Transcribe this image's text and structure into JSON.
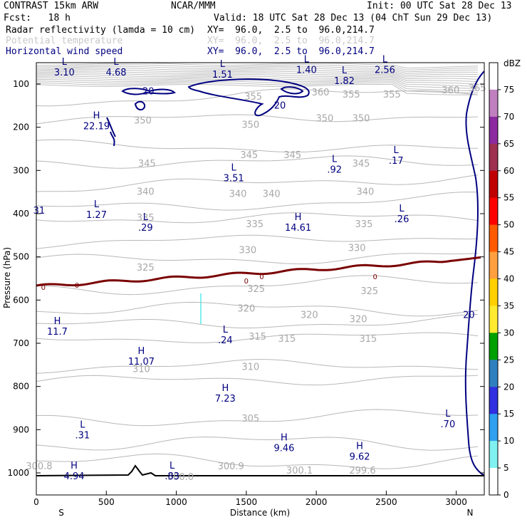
{
  "header": {
    "model": "CONTRAST 15km ARW",
    "center": "NCAR/MMM",
    "init": "Init: 00 UTC Sat 28 Dec 13",
    "fcst": "Fcst:   18 h",
    "valid": "Valid: 18 UTC Sat 28 Dec 13 (04 ChT Sun 29 Dec 13)",
    "fields": [
      {
        "name": "Radar reflectivity (lamda = 10 cm)",
        "xy": "XY=  96.0,  2.5 to  96.0,214.7",
        "color": "#000000"
      },
      {
        "name": "Potential temperature",
        "xy": "XY=  96.0,  2.5 to  96.0,214.7",
        "color": "#c8c8c8"
      },
      {
        "name": "Horizontal wind speed",
        "xy": "XY=  96.0,  2.5 to  96.0,214.7",
        "color": "#000080"
      }
    ]
  },
  "chart_data": {
    "type": "cross-section",
    "xlabel": "Distance (km)",
    "ylabel": "Pressure (hPa)",
    "xlim": [
      0,
      3200
    ],
    "ylim": [
      1030,
      50
    ],
    "x_ticks": [
      0,
      500,
      1000,
      1500,
      2000,
      2500,
      3000
    ],
    "y_ticks": [
      100,
      200,
      300,
      400,
      500,
      600,
      700,
      800,
      900,
      1000
    ],
    "left_end_label": "S",
    "right_end_label": "N",
    "colorbar": {
      "unit": "dBZ",
      "levels": [
        75,
        70,
        65,
        60,
        55,
        50,
        45,
        40,
        35,
        30,
        25,
        20,
        15,
        10,
        5,
        0
      ],
      "colors": [
        "#ffffff",
        "#c080c0",
        "#8c2aa0",
        "#9e3050",
        "#c00000",
        "#ff0000",
        "#ff5a00",
        "#ffa040",
        "#ffd000",
        "#ffeb30",
        "#00a000",
        "#3080c0",
        "#3030e0",
        "#30a0f0",
        "#80f0f0",
        "#ffffff"
      ]
    },
    "theta_labels": [
      {
        "x": 1550,
        "p": 130,
        "text": "355"
      },
      {
        "x": 2030,
        "p": 120,
        "text": "360"
      },
      {
        "x": 2250,
        "p": 125,
        "text": "355"
      },
      {
        "x": 2540,
        "p": 125,
        "text": "355"
      },
      {
        "x": 2960,
        "p": 115,
        "text": "360"
      },
      {
        "x": 3150,
        "p": 110,
        "text": "365"
      },
      {
        "x": 760,
        "p": 185,
        "text": "350"
      },
      {
        "x": 1530,
        "p": 195,
        "text": "350"
      },
      {
        "x": 2060,
        "p": 180,
        "text": "350"
      },
      {
        "x": 2320,
        "p": 180,
        "text": "350"
      },
      {
        "x": 790,
        "p": 285,
        "text": "345"
      },
      {
        "x": 1520,
        "p": 265,
        "text": "345"
      },
      {
        "x": 1830,
        "p": 265,
        "text": "345"
      },
      {
        "x": 2320,
        "p": 285,
        "text": "345"
      },
      {
        "x": 780,
        "p": 350,
        "text": "340"
      },
      {
        "x": 1440,
        "p": 355,
        "text": "340"
      },
      {
        "x": 1680,
        "p": 355,
        "text": "340"
      },
      {
        "x": 2350,
        "p": 350,
        "text": "340"
      },
      {
        "x": 780,
        "p": 410,
        "text": "335"
      },
      {
        "x": 1560,
        "p": 425,
        "text": "335"
      },
      {
        "x": 2340,
        "p": 425,
        "text": "335"
      },
      {
        "x": 1510,
        "p": 485,
        "text": "330"
      },
      {
        "x": 2290,
        "p": 480,
        "text": "330"
      },
      {
        "x": 780,
        "p": 525,
        "text": "325"
      },
      {
        "x": 1570,
        "p": 575,
        "text": "325"
      },
      {
        "x": 2380,
        "p": 580,
        "text": "325"
      },
      {
        "x": 1500,
        "p": 620,
        "text": "320"
      },
      {
        "x": 1950,
        "p": 635,
        "text": "320"
      },
      {
        "x": 2300,
        "p": 645,
        "text": "320"
      },
      {
        "x": 1580,
        "p": 685,
        "text": "315"
      },
      {
        "x": 1790,
        "p": 690,
        "text": "315"
      },
      {
        "x": 2370,
        "p": 690,
        "text": "315"
      },
      {
        "x": 750,
        "p": 760,
        "text": "310"
      },
      {
        "x": 1530,
        "p": 755,
        "text": "310"
      },
      {
        "x": 1530,
        "p": 875,
        "text": "305"
      },
      {
        "x": 1390,
        "p": 985,
        "text": "300.9"
      },
      {
        "x": 1880,
        "p": 995,
        "text": "300.1"
      },
      {
        "x": 2330,
        "p": 995,
        "text": "299.6"
      },
      {
        "x": 20,
        "p": 985,
        "text": "300.8"
      },
      {
        "x": 1030,
        "p": 1010,
        "text": "300.0"
      }
    ],
    "wind_labels": [
      {
        "x": 200,
        "p": 65,
        "kind": "L",
        "value": "3.10"
      },
      {
        "x": 570,
        "p": 65,
        "kind": "L",
        "value": "4.68"
      },
      {
        "x": 1330,
        "p": 70,
        "kind": "L",
        "value": "1.51"
      },
      {
        "x": 1930,
        "p": 60,
        "kind": "L",
        "value": "1.40"
      },
      {
        "x": 2200,
        "p": 85,
        "kind": "L",
        "value": "1.82"
      },
      {
        "x": 2490,
        "p": 60,
        "kind": "L",
        "value": "2.56"
      },
      {
        "x": 430,
        "p": 190,
        "kind": "H",
        "value": "22.19"
      },
      {
        "x": 2130,
        "p": 290,
        "kind": "L",
        "value": ".92"
      },
      {
        "x": 2570,
        "p": 270,
        "kind": "L",
        "value": ".17"
      },
      {
        "x": 1410,
        "p": 310,
        "kind": "L",
        "value": "3.51"
      },
      {
        "x": 20,
        "p": 385,
        "kind": "",
        "value": "31"
      },
      {
        "x": 430,
        "p": 395,
        "kind": "L",
        "value": "1.27"
      },
      {
        "x": 780,
        "p": 425,
        "kind": "L",
        "value": ".29"
      },
      {
        "x": 1870,
        "p": 425,
        "kind": "H",
        "value": "14.61"
      },
      {
        "x": 2610,
        "p": 405,
        "kind": "L",
        "value": ".26"
      },
      {
        "x": 150,
        "p": 665,
        "kind": "H",
        "value": "11.7"
      },
      {
        "x": 1350,
        "p": 685,
        "kind": "L",
        "value": ".24"
      },
      {
        "x": 750,
        "p": 735,
        "kind": "H",
        "value": "11.07"
      },
      {
        "x": 1350,
        "p": 820,
        "kind": "H",
        "value": "7.23"
      },
      {
        "x": 330,
        "p": 905,
        "kind": "L",
        "value": ".31"
      },
      {
        "x": 2940,
        "p": 880,
        "kind": "L",
        "value": ".70"
      },
      {
        "x": 1770,
        "p": 935,
        "kind": "H",
        "value": "9.46"
      },
      {
        "x": 2310,
        "p": 955,
        "kind": "H",
        "value": "9.62"
      },
      {
        "x": 270,
        "p": 1000,
        "kind": "H",
        "value": "4.94"
      },
      {
        "x": 970,
        "p": 1000,
        "kind": "L",
        "value": ".83"
      }
    ],
    "wind_contour_labels": [
      {
        "x": 800,
        "p": 117,
        "text": "20"
      },
      {
        "x": 1740,
        "p": 150,
        "text": "20"
      },
      {
        "x": 3090,
        "p": 635,
        "text": "20"
      }
    ],
    "freezing_level_labels": [
      {
        "x": 50,
        "p": 570,
        "text": "0"
      },
      {
        "x": 290,
        "p": 565,
        "text": "0"
      },
      {
        "x": 1500,
        "p": 555,
        "text": "0"
      },
      {
        "x": 1610,
        "p": 545,
        "text": "0"
      },
      {
        "x": 2420,
        "p": 545,
        "text": "0"
      }
    ]
  }
}
